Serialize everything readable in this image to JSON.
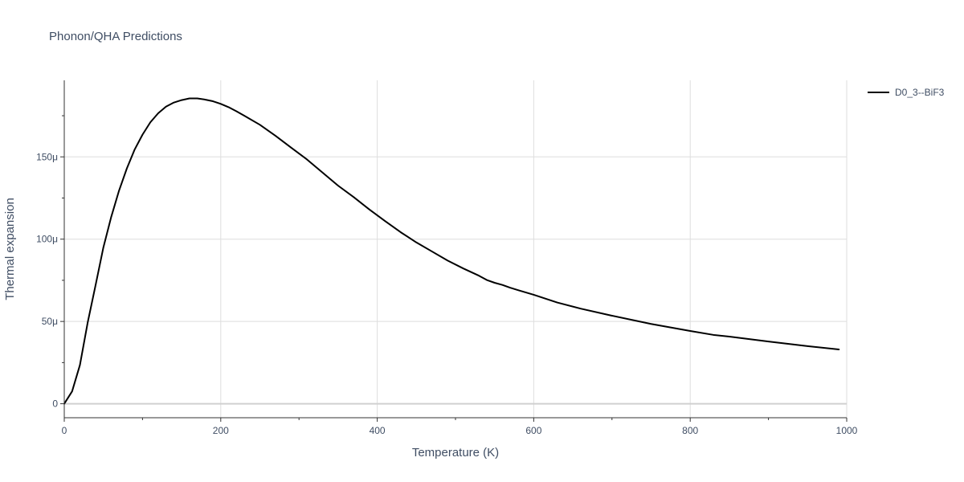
{
  "chart_data": {
    "type": "line",
    "title": "Phonon/QHA Predictions",
    "xlabel": "Temperature (K)",
    "ylabel": "Thermal expansion",
    "xlim": [
      0,
      1000
    ],
    "ylim": [
      -8.5e-06,
      0.0001965
    ],
    "x_ticks": [
      0,
      200,
      400,
      600,
      800,
      1000
    ],
    "x_tick_labels": [
      "0",
      "200",
      "400",
      "600",
      "800",
      "1000"
    ],
    "y_ticks": [
      0,
      5e-05,
      0.0001,
      0.00015
    ],
    "y_tick_labels": [
      "0",
      "50μ",
      "100μ",
      "150μ"
    ],
    "grid": true,
    "legend_position": "top-right",
    "series": [
      {
        "name": "D0_3--BiF3",
        "color": "#000000",
        "x": [
          0,
          10,
          20,
          30,
          40,
          50,
          60,
          70,
          80,
          90,
          100,
          110,
          120,
          130,
          140,
          150,
          160,
          170,
          180,
          190,
          200,
          210,
          220,
          230,
          250,
          270,
          290,
          310,
          330,
          350,
          370,
          390,
          410,
          430,
          450,
          470,
          490,
          510,
          530,
          540,
          550,
          560,
          570,
          580,
          600,
          630,
          660,
          700,
          750,
          800,
          830,
          850,
          900,
          950,
          990
        ],
        "y": [
          0,
          7.5e-06,
          2.35e-05,
          4.95e-05,
          7.2e-05,
          9.5e-05,
          0.0001135,
          0.0001295,
          0.000143,
          0.0001545,
          0.0001635,
          0.000171,
          0.0001765,
          0.0001805,
          0.000183,
          0.0001845,
          0.0001855,
          0.0001855,
          0.0001848,
          0.0001838,
          0.0001822,
          0.0001802,
          0.0001777,
          0.000175,
          0.0001695,
          0.0001628,
          0.0001556,
          0.0001485,
          0.0001405,
          0.0001325,
          0.0001255,
          0.000118,
          0.000111,
          0.0001042,
          9.8e-05,
          9.25e-05,
          8.7e-05,
          8.22e-05,
          7.78e-05,
          7.52e-05,
          7.35e-05,
          7.22e-05,
          7.05e-05,
          6.9e-05,
          6.62e-05,
          6.15e-05,
          5.78e-05,
          5.35e-05,
          4.85e-05,
          4.42e-05,
          4.18e-05,
          4.08e-05,
          3.78e-05,
          3.5e-05,
          3.3e-05
        ]
      }
    ]
  }
}
